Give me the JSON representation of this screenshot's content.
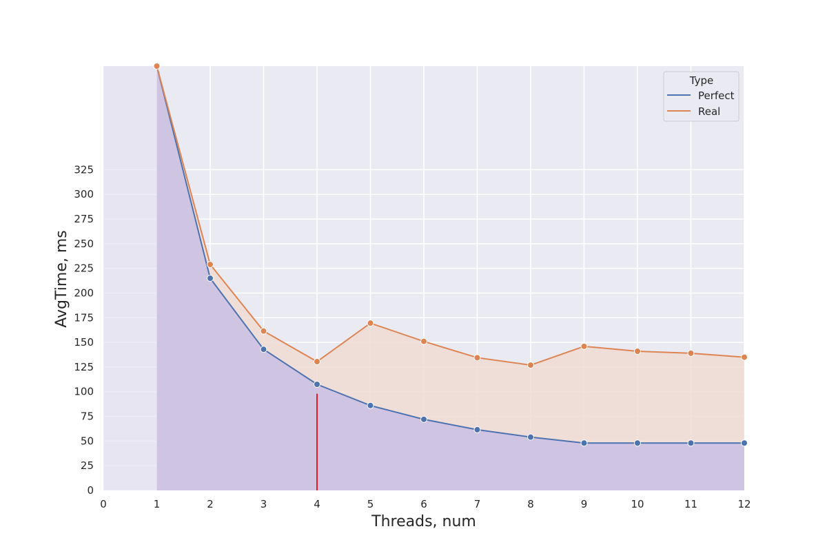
{
  "chart_data": {
    "type": "line",
    "title": "",
    "xlabel": "Threads, num",
    "ylabel": "AvgTime, ms",
    "xlim": [
      0,
      12
    ],
    "ylim": [
      0,
      430
    ],
    "xticks": [
      "0",
      "1",
      "2",
      "3",
      "4",
      "5",
      "6",
      "7",
      "8",
      "9",
      "10",
      "11",
      "12"
    ],
    "yticks": [
      "0",
      "25",
      "50",
      "75",
      "100",
      "125",
      "150",
      "175",
      "200",
      "225",
      "250",
      "275",
      "300",
      "325"
    ],
    "grid": true,
    "legend": {
      "title": "Type",
      "position": "top-right"
    },
    "x": [
      1,
      2,
      3,
      4,
      5,
      6,
      7,
      8,
      9,
      10,
      11,
      12
    ],
    "series": [
      {
        "name": "Perfect",
        "color": "#4c72b0",
        "fill": "#c9bfe3",
        "values": [
          430,
          215,
          143,
          107.5,
          86,
          72,
          61.5,
          54,
          48,
          48,
          48,
          48
        ]
      },
      {
        "name": "Real",
        "color": "#dd8452",
        "fill": "#f0dcd4",
        "values": [
          430,
          229,
          161.5,
          130.5,
          169.5,
          151,
          134.5,
          127,
          146,
          141,
          139,
          135
        ]
      }
    ],
    "markers": {
      "vertical_line": {
        "x": 4,
        "y": 98,
        "color": "#e8182a"
      },
      "shaded_region": {
        "x_from": 0,
        "x_to": 1,
        "color": "#e7e2f2"
      }
    }
  }
}
